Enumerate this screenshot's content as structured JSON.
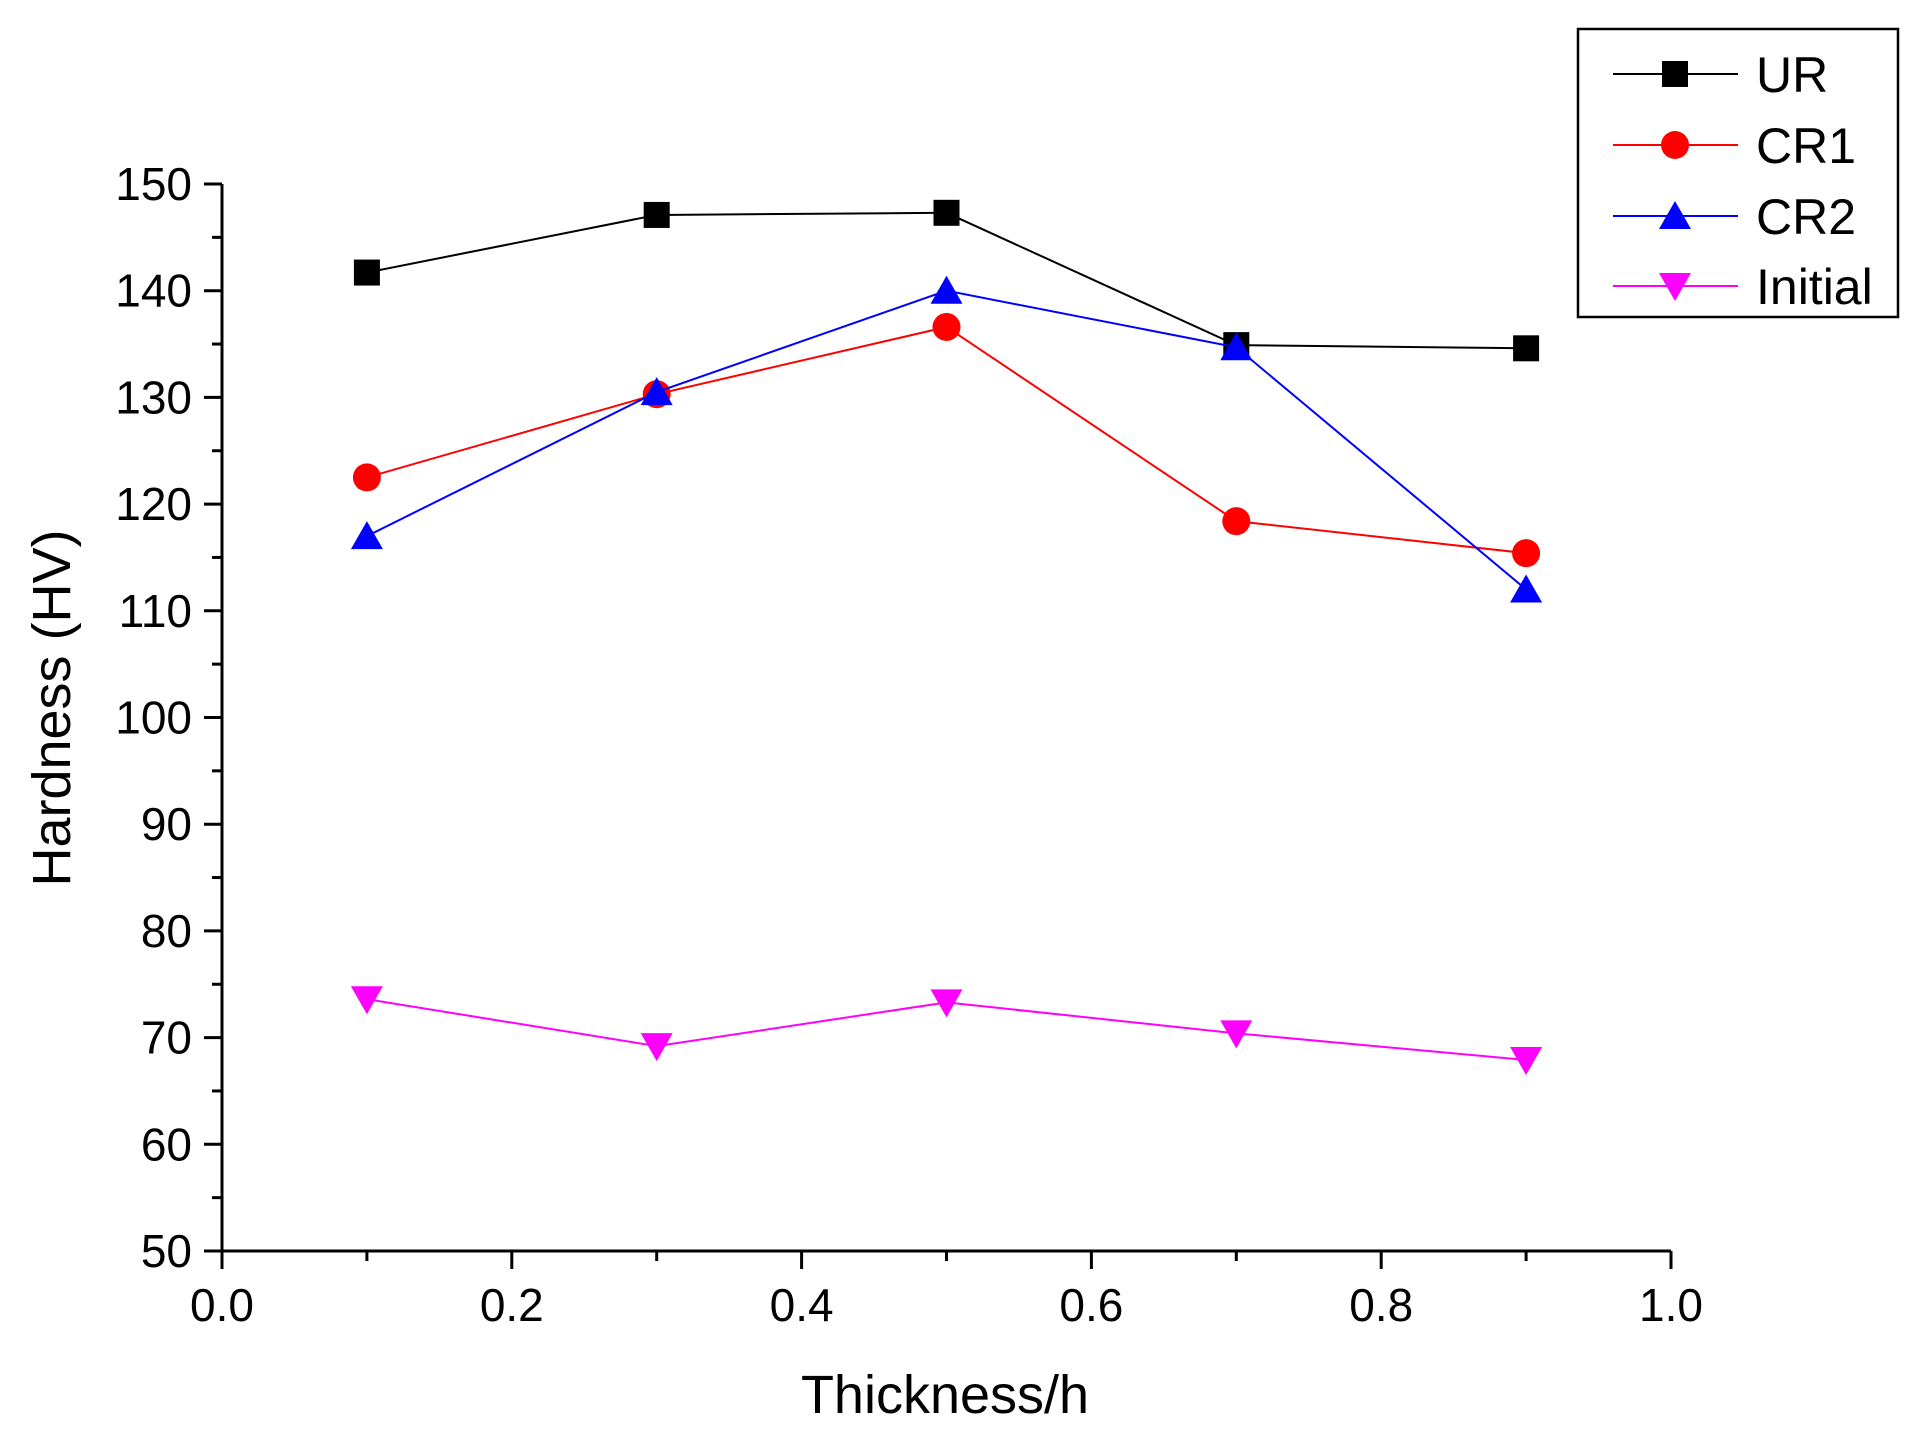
{
  "chart_data": {
    "type": "line",
    "title": "",
    "xlabel": "Thickness/h",
    "ylabel": "Hardness (HV)",
    "xlim": [
      0.0,
      1.0
    ],
    "ylim": [
      50,
      150
    ],
    "x_ticks": [
      0.0,
      0.2,
      0.4,
      0.6,
      0.8,
      1.0
    ],
    "x_tick_labels": [
      "0.0",
      "0.2",
      "0.4",
      "0.6",
      "0.8",
      "1.0"
    ],
    "y_ticks": [
      50,
      60,
      70,
      80,
      90,
      100,
      110,
      120,
      130,
      140,
      150
    ],
    "y_tick_labels": [
      "50",
      "60",
      "70",
      "80",
      "90",
      "100",
      "110",
      "120",
      "130",
      "140",
      "150"
    ],
    "grid": false,
    "legend_position": "top-right",
    "x": [
      0.1,
      0.3,
      0.5,
      0.7,
      0.9
    ],
    "series": [
      {
        "name": "UR",
        "marker": "square",
        "color": "#000000",
        "values": [
          141.7,
          147.1,
          147.3,
          134.9,
          134.6
        ]
      },
      {
        "name": "CR1",
        "marker": "circle",
        "color": "#ff0000",
        "values": [
          122.5,
          130.3,
          136.6,
          118.4,
          115.4
        ]
      },
      {
        "name": "CR2",
        "marker": "triangle-up",
        "color": "#0000ff",
        "values": [
          117.0,
          130.5,
          140.0,
          134.7,
          112.0
        ]
      },
      {
        "name": "Initial",
        "marker": "triangle-down",
        "color": "#ff00ff",
        "values": [
          73.6,
          69.2,
          73.3,
          70.4,
          67.9
        ]
      }
    ]
  }
}
